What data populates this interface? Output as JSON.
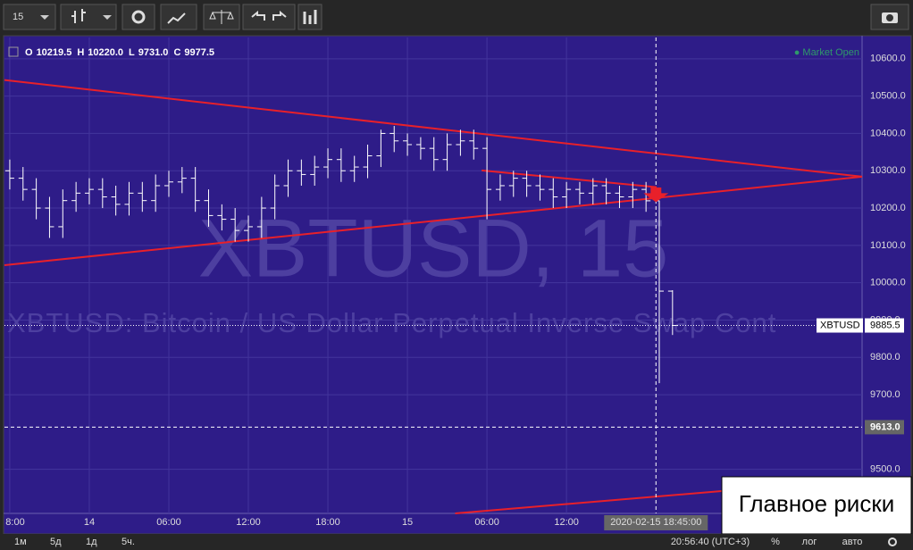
{
  "toolbar": {
    "interval": "15"
  },
  "chart_data": {
    "type": "ohlc",
    "legend": {
      "o_label": "O",
      "o": "10219.5",
      "h_label": "H",
      "h": "10220.0",
      "l_label": "L",
      "l": "9731.0",
      "c_label": "C",
      "c": "9977.5"
    },
    "status": "● Market Open",
    "watermark": "XBTUSD, 15",
    "watermark_sub": "XBTUSD:  Bitcoin / US Dollar Perpetual Inverse Swap Cont",
    "xlim": [
      -6.4,
      58.3
    ],
    "ylim": [
      9382,
      10657
    ],
    "xticks": [
      {
        "value": -6,
        "label": "8:00"
      },
      {
        "value": 0,
        "label": "14"
      },
      {
        "value": 6,
        "label": "06:00"
      },
      {
        "value": 12,
        "label": "12:00"
      },
      {
        "value": 18,
        "label": "18:00"
      },
      {
        "value": 24,
        "label": "15"
      },
      {
        "value": 30,
        "label": "06:00"
      },
      {
        "value": 36,
        "label": "12:00"
      }
    ],
    "yticks": [
      {
        "value": 10600,
        "label": "10600.0"
      },
      {
        "value": 10500,
        "label": "10500.0"
      },
      {
        "value": 10400,
        "label": "10400.0"
      },
      {
        "value": 10300,
        "label": "10300.0"
      },
      {
        "value": 10200,
        "label": "10200.0"
      },
      {
        "value": 10100,
        "label": "10100.0"
      },
      {
        "value": 10000,
        "label": "10000.0"
      },
      {
        "value": 9900,
        "label": "9900.0"
      },
      {
        "value": 9800,
        "label": "9800.0"
      },
      {
        "value": 9700,
        "label": "9700.0"
      },
      {
        "value": 9500,
        "label": "9500.0"
      }
    ],
    "bars": {
      "t": [
        -6,
        -5,
        -4,
        -3,
        -2,
        -1,
        0,
        1,
        2,
        3,
        4,
        5,
        6,
        7,
        8,
        9,
        10,
        11,
        12,
        13,
        14,
        15,
        16,
        17,
        18,
        19,
        20,
        21,
        22,
        23,
        24,
        25,
        26,
        27,
        28,
        29,
        30,
        31,
        32,
        33,
        34,
        35,
        36,
        37,
        38,
        39,
        40,
        41,
        42,
        43,
        44
      ],
      "o": [
        10300,
        10280,
        10250,
        10200,
        10150,
        10220,
        10240,
        10250,
        10230,
        10210,
        10240,
        10220,
        10260,
        10270,
        10280,
        10220,
        10180,
        10170,
        10140,
        10150,
        10200,
        10260,
        10300,
        10290,
        10310,
        10330,
        10300,
        10310,
        10340,
        10400,
        10380,
        10370,
        10360,
        10330,
        10370,
        10380,
        10360,
        10250,
        10260,
        10280,
        10260,
        10250,
        10230,
        10250,
        10240,
        10260,
        10240,
        10230,
        10250,
        10219.5,
        9977.5
      ],
      "h": [
        10330,
        10310,
        10280,
        10230,
        10250,
        10270,
        10280,
        10280,
        10260,
        10270,
        10270,
        10290,
        10300,
        10310,
        10310,
        10250,
        10210,
        10200,
        10180,
        10230,
        10290,
        10330,
        10330,
        10340,
        10360,
        10360,
        10340,
        10370,
        10410,
        10420,
        10400,
        10390,
        10390,
        10400,
        10410,
        10410,
        10390,
        10290,
        10300,
        10300,
        10290,
        10280,
        10270,
        10270,
        10280,
        10280,
        10260,
        10270,
        10270,
        10220,
        9980
      ],
      "l": [
        10250,
        10220,
        10170,
        10120,
        10120,
        10190,
        10210,
        10200,
        10180,
        10180,
        10190,
        10190,
        10230,
        10240,
        10190,
        10150,
        10140,
        10110,
        10110,
        10120,
        10170,
        10230,
        10260,
        10260,
        10280,
        10270,
        10270,
        10280,
        10310,
        10350,
        10340,
        10330,
        10300,
        10300,
        10340,
        10330,
        10170,
        10220,
        10230,
        10230,
        10220,
        10200,
        10200,
        10210,
        10210,
        10210,
        10200,
        10200,
        10190,
        9731,
        9860
      ],
      "c": [
        10280,
        10250,
        10200,
        10150,
        10220,
        10240,
        10250,
        10230,
        10210,
        10240,
        10220,
        10260,
        10270,
        10280,
        10220,
        10180,
        10170,
        10140,
        10150,
        10200,
        10260,
        10300,
        10290,
        10310,
        10330,
        10300,
        10310,
        10340,
        10400,
        10380,
        10370,
        10360,
        10330,
        10370,
        10380,
        10360,
        10250,
        10260,
        10280,
        10260,
        10250,
        10230,
        10250,
        10240,
        10260,
        10240,
        10230,
        10250,
        10219.5,
        9977.5,
        9885.5
      ]
    },
    "trendlines": [
      {
        "x": [
          -6.4,
          58.3
        ],
        "y": [
          10543,
          10284
        ]
      },
      {
        "x": [
          -6.4,
          58.3
        ],
        "y": [
          10047,
          10284
        ]
      },
      {
        "x": [
          29.6,
          42.8
        ],
        "y": [
          10301,
          10256
        ]
      },
      {
        "x": [
          27.6,
          47.8
        ],
        "y": [
          9382,
          9442
        ]
      }
    ],
    "price_line": {
      "name": "XBTUSD",
      "value": 9885.5,
      "label": "9885.5"
    },
    "cross_line": {
      "value": 9613,
      "label": "9613.0"
    },
    "cursor": {
      "value": 42.75,
      "label": "2020-02-15 18:45:00"
    },
    "annotation": "Главное риски"
  },
  "bottom_bar": {
    "ranges": [
      "1м",
      "5д",
      "1д",
      "5ч."
    ],
    "clock": "20:56:40 (UTC+3)",
    "percent": "%",
    "log": "лог",
    "auto": "авто"
  }
}
